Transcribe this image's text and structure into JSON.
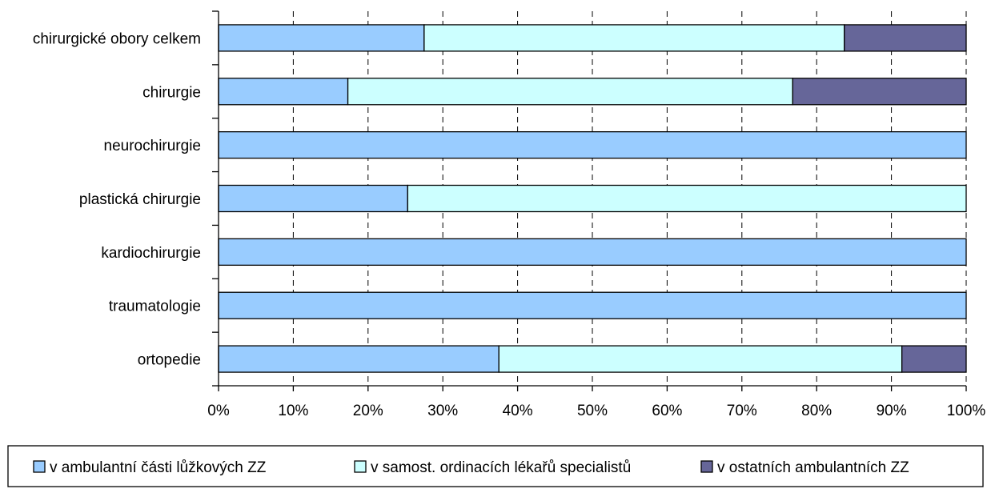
{
  "chart_data": {
    "type": "bar",
    "orientation": "horizontal",
    "stacked": "percent",
    "categories": [
      "chirurgické obory celkem",
      "chirurgie",
      "neurochirurgie",
      "plastická chirurgie",
      "kardiochirurgie",
      "traumatologie",
      "ortopedie"
    ],
    "series": [
      {
        "name": "v ambulantní části lůžkových ZZ",
        "color": "#99CCFF",
        "values": [
          27.5,
          17.3,
          100,
          25.3,
          100,
          100,
          37.5
        ]
      },
      {
        "name": "v samost. ordinacích lékařů specialistů",
        "color": "#CCFFFF",
        "values": [
          56.2,
          59.5,
          0,
          74.7,
          0,
          0,
          53.9
        ]
      },
      {
        "name": "v ostatních ambulantních ZZ",
        "color": "#666699",
        "values": [
          16.3,
          23.2,
          0,
          0,
          0,
          0,
          8.6
        ]
      }
    ],
    "x_ticks": [
      "0%",
      "10%",
      "20%",
      "30%",
      "40%",
      "50%",
      "60%",
      "70%",
      "80%",
      "90%",
      "100%"
    ],
    "xlim": [
      0,
      100
    ],
    "grid": "vertical dashed",
    "legend_position": "bottom"
  }
}
